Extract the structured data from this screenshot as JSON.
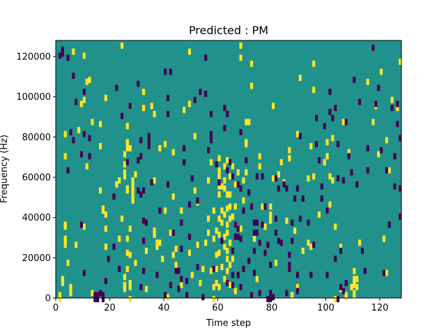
{
  "chart_data": {
    "type": "heatmap",
    "title": "Predicted : PM",
    "xlabel": "Time step",
    "ylabel": "Frequency (Hz)",
    "xlim": [
      0,
      128
    ],
    "ylim": [
      0,
      128000
    ],
    "x_ticks": [
      0,
      20,
      40,
      60,
      80,
      100,
      120
    ],
    "y_ticks": [
      0,
      20000,
      40000,
      60000,
      80000,
      100000,
      120000
    ],
    "grid": false,
    "colors": {
      "background": "#21918c",
      "positive": "#fde725",
      "negative": "#440154"
    },
    "freq_bin_hz": 1000,
    "cells_positive": [
      [
        1,
        0
      ],
      [
        1,
        2
      ],
      [
        2,
        8
      ],
      [
        2,
        10
      ],
      [
        3,
        27
      ],
      [
        3,
        30
      ],
      [
        3,
        36
      ],
      [
        3,
        37
      ],
      [
        3,
        71
      ],
      [
        3,
        82
      ],
      [
        4,
        18
      ],
      [
        5,
        3
      ],
      [
        5,
        6
      ],
      [
        6,
        123
      ],
      [
        7,
        27
      ],
      [
        8,
        84
      ],
      [
        9,
        97
      ],
      [
        10,
        36
      ],
      [
        10,
        121
      ],
      [
        10,
        99
      ],
      [
        11,
        66
      ],
      [
        11,
        108
      ],
      [
        12,
        109
      ],
      [
        13,
        88
      ],
      [
        13,
        3
      ],
      [
        16,
        54
      ],
      [
        16,
        87
      ],
      [
        16,
        76
      ],
      [
        17,
        44
      ],
      [
        17,
        45
      ],
      [
        18,
        35
      ],
      [
        18,
        42
      ],
      [
        18,
        100
      ],
      [
        18,
        26
      ],
      [
        22,
        57
      ],
      [
        23,
        59
      ],
      [
        23,
        30
      ],
      [
        24,
        40
      ],
      [
        24,
        126
      ],
      [
        25,
        5
      ],
      [
        25,
        6
      ],
      [
        25,
        7
      ],
      [
        25,
        11
      ],
      [
        25,
        61
      ],
      [
        25,
        67
      ],
      [
        25,
        63
      ],
      [
        25,
        72
      ],
      [
        26,
        15
      ],
      [
        26,
        23
      ],
      [
        26,
        30
      ],
      [
        26,
        54
      ],
      [
        26,
        55
      ],
      [
        26,
        75
      ],
      [
        26,
        77
      ],
      [
        26,
        78
      ],
      [
        26,
        86
      ],
      [
        27,
        0
      ],
      [
        27,
        6
      ],
      [
        27,
        8
      ],
      [
        27,
        22
      ],
      [
        27,
        35
      ],
      [
        27,
        75
      ],
      [
        27,
        96
      ],
      [
        28,
        49
      ],
      [
        28,
        50
      ],
      [
        28,
        53
      ],
      [
        28,
        56
      ],
      [
        28,
        59
      ],
      [
        29,
        18
      ],
      [
        29,
        62
      ],
      [
        32,
        95
      ],
      [
        32,
        103
      ],
      [
        33,
        5
      ],
      [
        33,
        24
      ],
      [
        35,
        96
      ],
      [
        36,
        32
      ],
      [
        36,
        34
      ],
      [
        36,
        59
      ],
      [
        36,
        92
      ],
      [
        37,
        26
      ],
      [
        37,
        28
      ],
      [
        38,
        28
      ],
      [
        38,
        75
      ],
      [
        39,
        20
      ],
      [
        40,
        44
      ],
      [
        40,
        77
      ],
      [
        41,
        1
      ],
      [
        42,
        33
      ],
      [
        43,
        22
      ],
      [
        43,
        51
      ],
      [
        43,
        73
      ],
      [
        44,
        17
      ],
      [
        44,
        25
      ],
      [
        46,
        7
      ],
      [
        46,
        44
      ],
      [
        47,
        94
      ],
      [
        49,
        23
      ],
      [
        49,
        97
      ],
      [
        49,
        123
      ],
      [
        50,
        12
      ],
      [
        51,
        54
      ],
      [
        51,
        81
      ],
      [
        52,
        27
      ],
      [
        52,
        48
      ],
      [
        53,
        8
      ],
      [
        54,
        15
      ],
      [
        55,
        28
      ],
      [
        56,
        33
      ],
      [
        56,
        40
      ],
      [
        56,
        59
      ],
      [
        57,
        68
      ],
      [
        57,
        14
      ],
      [
        58,
        0
      ],
      [
        58,
        6
      ],
      [
        58,
        30
      ],
      [
        58,
        44
      ],
      [
        59,
        8
      ],
      [
        59,
        15
      ],
      [
        59,
        22
      ],
      [
        59,
        34
      ],
      [
        60,
        6
      ],
      [
        60,
        23
      ],
      [
        60,
        32
      ],
      [
        60,
        40
      ],
      [
        60,
        52
      ],
      [
        60,
        56
      ],
      [
        60,
        61
      ],
      [
        60,
        64
      ],
      [
        60,
        70
      ],
      [
        61,
        16
      ],
      [
        61,
        38
      ],
      [
        61,
        44
      ],
      [
        61,
        56
      ],
      [
        62,
        10
      ],
      [
        62,
        26
      ],
      [
        62,
        31
      ],
      [
        62,
        42
      ],
      [
        62,
        55
      ],
      [
        62,
        59
      ],
      [
        62,
        66
      ],
      [
        63,
        14
      ],
      [
        63,
        20
      ],
      [
        63,
        24
      ],
      [
        63,
        33
      ],
      [
        63,
        37
      ],
      [
        63,
        45
      ],
      [
        63,
        52
      ],
      [
        63,
        69
      ],
      [
        64,
        7
      ],
      [
        64,
        17
      ],
      [
        64,
        28
      ],
      [
        64,
        40
      ],
      [
        64,
        46
      ],
      [
        64,
        52
      ],
      [
        64,
        61
      ],
      [
        65,
        20
      ],
      [
        65,
        41
      ],
      [
        65,
        66
      ],
      [
        66,
        4
      ],
      [
        66,
        37
      ],
      [
        66,
        46
      ],
      [
        66,
        57
      ],
      [
        67,
        63
      ],
      [
        68,
        120
      ],
      [
        68,
        126
      ],
      [
        68,
        35
      ],
      [
        69,
        49
      ],
      [
        69,
        59
      ],
      [
        70,
        63
      ],
      [
        70,
        77
      ],
      [
        70,
        78
      ],
      [
        70,
        88
      ],
      [
        71,
        88
      ],
      [
        72,
        117
      ],
      [
        72,
        106
      ],
      [
        73,
        30
      ],
      [
        74,
        10
      ],
      [
        75,
        71
      ],
      [
        75,
        66
      ],
      [
        76,
        46
      ],
      [
        77,
        36
      ],
      [
        77,
        36
      ],
      [
        79,
        39
      ],
      [
        79,
        42
      ],
      [
        79,
        46
      ],
      [
        80,
        60
      ],
      [
        80,
        96
      ],
      [
        81,
        18
      ],
      [
        82,
        62
      ],
      [
        83,
        68
      ],
      [
        84,
        58
      ],
      [
        85,
        39
      ],
      [
        86,
        70
      ],
      [
        86,
        74
      ],
      [
        87,
        2
      ],
      [
        88,
        34
      ],
      [
        89,
        6
      ],
      [
        89,
        82
      ],
      [
        90,
        110
      ],
      [
        91,
        24
      ],
      [
        93,
        28
      ],
      [
        93,
        60
      ],
      [
        94,
        26
      ],
      [
        94,
        76
      ],
      [
        95,
        61
      ],
      [
        95,
        104
      ],
      [
        95,
        117
      ],
      [
        97,
        42
      ],
      [
        99,
        68
      ],
      [
        100,
        71
      ],
      [
        100,
        78
      ],
      [
        101,
        47
      ],
      [
        101,
        61
      ],
      [
        102,
        59
      ],
      [
        102,
        80
      ],
      [
        103,
        0
      ],
      [
        103,
        36
      ],
      [
        105,
        5
      ],
      [
        105,
        26
      ],
      [
        106,
        88
      ],
      [
        107,
        1
      ],
      [
        107,
        2
      ],
      [
        108,
        73
      ],
      [
        109,
        6
      ],
      [
        110,
        2
      ],
      [
        110,
        3
      ],
      [
        110,
        7
      ],
      [
        110,
        14
      ],
      [
        110,
        8
      ],
      [
        110,
        10
      ],
      [
        111,
        6
      ],
      [
        111,
        10
      ],
      [
        112,
        28
      ],
      [
        115,
        108
      ],
      [
        117,
        88
      ],
      [
        118,
        96
      ],
      [
        119,
        72
      ],
      [
        120,
        113
      ],
      [
        121,
        30
      ],
      [
        122,
        13
      ],
      [
        122,
        79
      ],
      [
        123,
        64
      ],
      [
        124,
        99
      ],
      [
        126,
        95
      ],
      [
        127,
        118
      ]
    ],
    "cells_negative": [
      [
        1,
        121
      ],
      [
        2,
        122
      ],
      [
        2,
        124
      ],
      [
        4,
        64
      ],
      [
        4,
        120
      ],
      [
        5,
        83
      ],
      [
        6,
        79
      ],
      [
        6,
        111
      ],
      [
        7,
        98
      ],
      [
        9,
        37
      ],
      [
        9,
        72
      ],
      [
        10,
        13
      ],
      [
        10,
        82
      ],
      [
        10,
        103
      ],
      [
        12,
        71
      ],
      [
        12,
        80
      ],
      [
        14,
        0
      ],
      [
        14,
        2
      ],
      [
        15,
        0
      ],
      [
        15,
        2
      ],
      [
        16,
        3
      ],
      [
        17,
        0
      ],
      [
        17,
        2
      ],
      [
        18,
        9
      ],
      [
        19,
        20
      ],
      [
        21,
        51
      ],
      [
        21,
        26
      ],
      [
        22,
        105
      ],
      [
        23,
        15
      ],
      [
        24,
        91
      ],
      [
        26,
        68
      ],
      [
        27,
        96
      ],
      [
        30,
        54
      ],
      [
        30,
        69
      ],
      [
        30,
        107
      ],
      [
        31,
        6
      ],
      [
        31,
        52
      ],
      [
        31,
        71
      ],
      [
        31,
        79
      ],
      [
        32,
        14
      ],
      [
        32,
        29
      ],
      [
        32,
        39
      ],
      [
        32,
        54
      ],
      [
        33,
        38
      ],
      [
        34,
        76
      ],
      [
        34,
        81
      ],
      [
        34,
        78
      ],
      [
        35,
        58
      ],
      [
        37,
        12
      ],
      [
        38,
        44
      ],
      [
        40,
        2
      ],
      [
        40,
        113
      ],
      [
        41,
        57
      ],
      [
        41,
        92
      ],
      [
        41,
        100
      ],
      [
        42,
        7
      ],
      [
        42,
        113
      ],
      [
        43,
        33
      ],
      [
        44,
        14
      ],
      [
        45,
        5
      ],
      [
        45,
        14
      ],
      [
        46,
        10
      ],
      [
        46,
        25
      ],
      [
        46,
        38
      ],
      [
        47,
        68
      ],
      [
        47,
        75
      ],
      [
        48,
        2
      ],
      [
        48,
        9
      ],
      [
        49,
        31
      ],
      [
        49,
        47
      ],
      [
        50,
        60
      ],
      [
        51,
        99
      ],
      [
        52,
        16
      ],
      [
        52,
        49
      ],
      [
        53,
        103
      ],
      [
        54,
        1
      ],
      [
        55,
        120
      ],
      [
        55,
        102
      ],
      [
        56,
        74
      ],
      [
        57,
        79
      ],
      [
        57,
        82
      ],
      [
        57,
        92
      ],
      [
        58,
        15
      ],
      [
        59,
        67
      ],
      [
        60,
        58
      ],
      [
        61,
        29
      ],
      [
        62,
        85
      ],
      [
        62,
        95
      ],
      [
        63,
        8
      ],
      [
        63,
        64
      ],
      [
        63,
        92
      ],
      [
        64,
        68
      ],
      [
        65,
        7
      ],
      [
        65,
        12
      ],
      [
        65,
        24
      ],
      [
        65,
        61
      ],
      [
        66,
        31
      ],
      [
        66,
        37
      ],
      [
        67,
        12
      ],
      [
        67,
        31
      ],
      [
        67,
        57
      ],
      [
        67,
        35
      ],
      [
        68,
        6
      ],
      [
        68,
        30
      ],
      [
        68,
        55
      ],
      [
        68,
        83
      ],
      [
        69,
        15
      ],
      [
        69,
        44
      ],
      [
        70,
        69
      ],
      [
        71,
        19
      ],
      [
        71,
        53
      ],
      [
        72,
        2
      ],
      [
        72,
        46
      ],
      [
        73,
        13
      ],
      [
        73,
        24
      ],
      [
        73,
        33
      ],
      [
        73,
        38
      ],
      [
        74,
        61
      ],
      [
        74,
        33
      ],
      [
        74,
        38
      ],
      [
        75,
        3
      ],
      [
        75,
        28
      ],
      [
        76,
        61
      ],
      [
        76,
        37
      ],
      [
        77,
        23
      ],
      [
        77,
        46
      ],
      [
        78,
        0
      ],
      [
        78,
        27
      ],
      [
        79,
        17
      ],
      [
        79,
        3
      ],
      [
        79,
        0
      ],
      [
        80,
        1
      ],
      [
        81,
        40
      ],
      [
        81,
        60
      ],
      [
        81,
        33
      ],
      [
        82,
        29
      ],
      [
        82,
        55
      ],
      [
        83,
        28
      ],
      [
        84,
        57
      ],
      [
        85,
        3
      ],
      [
        85,
        55
      ],
      [
        86,
        22
      ],
      [
        86,
        15
      ],
      [
        86,
        17
      ],
      [
        87,
        29
      ],
      [
        87,
        38
      ],
      [
        88,
        50
      ],
      [
        89,
        55
      ],
      [
        89,
        4
      ],
      [
        89,
        12
      ],
      [
        90,
        81
      ],
      [
        90,
        40
      ],
      [
        91,
        50
      ],
      [
        93,
        38
      ],
      [
        94,
        12
      ],
      [
        95,
        27
      ],
      [
        96,
        77
      ],
      [
        96,
        90
      ],
      [
        97,
        69
      ],
      [
        98,
        56
      ],
      [
        98,
        50
      ],
      [
        99,
        86
      ],
      [
        100,
        12
      ],
      [
        100,
        44
      ],
      [
        101,
        93
      ],
      [
        101,
        103
      ],
      [
        102,
        90
      ],
      [
        103,
        95
      ],
      [
        103,
        20
      ],
      [
        104,
        0
      ],
      [
        104,
        77
      ],
      [
        104,
        60
      ],
      [
        105,
        6
      ],
      [
        105,
        24
      ],
      [
        106,
        4
      ],
      [
        106,
        59
      ],
      [
        107,
        8
      ],
      [
        107,
        88
      ],
      [
        108,
        71
      ],
      [
        109,
        63
      ],
      [
        110,
        109
      ],
      [
        111,
        57
      ],
      [
        112,
        98
      ],
      [
        113,
        24
      ],
      [
        114,
        14
      ],
      [
        115,
        75
      ],
      [
        115,
        64
      ],
      [
        117,
        125
      ],
      [
        118,
        97
      ],
      [
        119,
        105
      ],
      [
        120,
        74
      ],
      [
        121,
        13
      ],
      [
        122,
        64
      ],
      [
        123,
        37
      ],
      [
        124,
        95
      ],
      [
        125,
        56
      ],
      [
        126,
        97
      ],
      [
        126,
        87
      ],
      [
        127,
        80
      ],
      [
        127,
        41
      ],
      [
        127,
        55
      ],
      [
        125,
        71
      ]
    ]
  }
}
